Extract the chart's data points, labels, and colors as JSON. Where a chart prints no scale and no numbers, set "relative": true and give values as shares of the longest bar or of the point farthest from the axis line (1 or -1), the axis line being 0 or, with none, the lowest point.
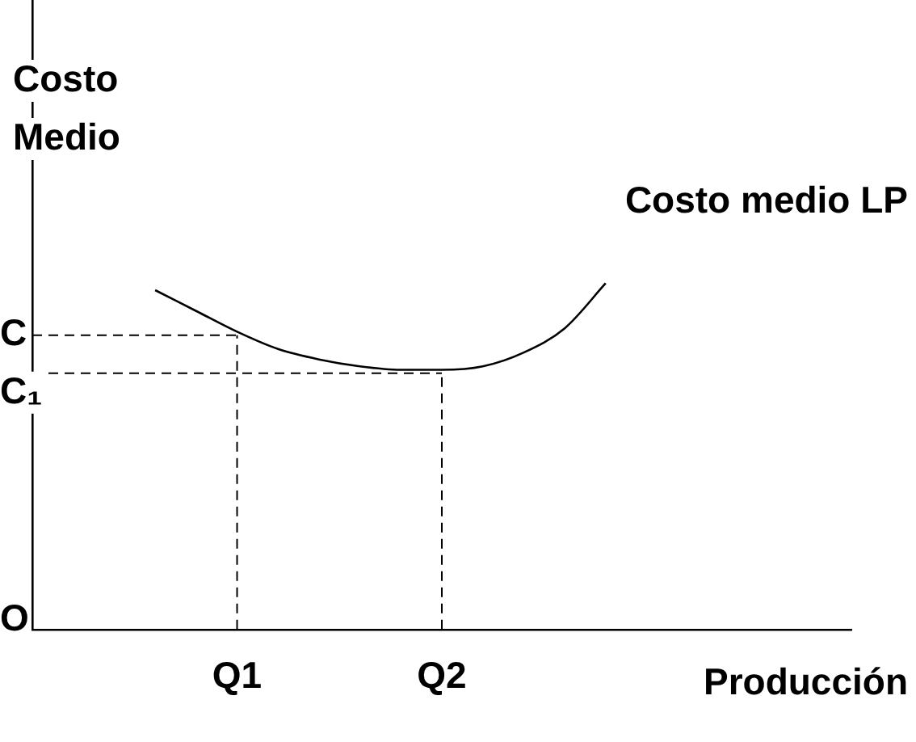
{
  "chart_data": {
    "type": "line",
    "relative": true,
    "ylabel": "Costo Medio",
    "xlabel": "Producción",
    "categories": [
      null,
      null,
      null,
      null,
      null,
      "Q1",
      null,
      null,
      null,
      null,
      "Q2",
      null,
      null,
      null,
      null,
      null,
      null,
      null,
      null,
      null,
      null
    ],
    "series": [
      {
        "name": "Costo medio LP",
        "color": "#000000",
        "values": [
          null,
          null,
          null,
          0.98,
          0.92,
          0.86,
          0.81,
          0.78,
          0.76,
          0.75,
          0.75,
          0.76,
          0.8,
          0.87,
          1,
          null,
          null,
          null,
          null,
          null,
          null
        ]
      }
    ],
    "ref_lines": [
      {
        "axis": "y",
        "value": 0.85,
        "label": "C",
        "line_style": "dashed"
      },
      {
        "axis": "y",
        "value": 0.74,
        "label": "C₁",
        "line_style": "dashed"
      },
      {
        "axis": "x",
        "value": "Q1",
        "line_style": "dashed"
      },
      {
        "axis": "x",
        "value": "Q2",
        "line_style": "dashed"
      }
    ],
    "annotations": [
      "O"
    ],
    "legend": false,
    "grid": false,
    "marker": "none"
  }
}
